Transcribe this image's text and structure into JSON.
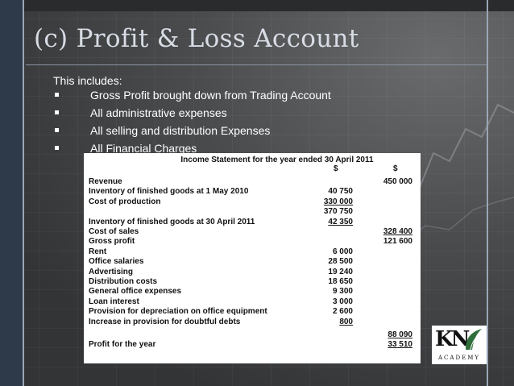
{
  "slide": {
    "title": "(c) Profit & Loss Account",
    "intro": "This includes:",
    "bullets": [
      "Gross Profit brought down from Trading Account",
      "All administrative expenses",
      "All selling and distribution Expenses",
      "All Financial Charges"
    ]
  },
  "statement": {
    "title": "Income Statement for the year ended 30 April 2011",
    "col1_header": "$",
    "col2_header": "$",
    "rows": [
      {
        "label": "Revenue",
        "c1": "",
        "c2": "450 000"
      },
      {
        "label": "Inventory of finished goods at 1 May 2010",
        "c1": "40 750",
        "c2": ""
      },
      {
        "label": "Cost of production",
        "c1": "330 000",
        "c2": ""
      },
      {
        "label": "",
        "c1": "370 750",
        "c2": ""
      },
      {
        "label": "Inventory of finished goods at 30 April 2011",
        "c1": "42 350",
        "c2": ""
      },
      {
        "label": "Cost of sales",
        "c1": "",
        "c2": "328 400"
      },
      {
        "label": "Gross profit",
        "c1": "",
        "c2": "121 600"
      },
      {
        "label": "Rent",
        "c1": "6 000",
        "c2": ""
      },
      {
        "label": "Office salaries",
        "c1": "28 500",
        "c2": ""
      },
      {
        "label": "Advertising",
        "c1": "19 240",
        "c2": ""
      },
      {
        "label": "Distribution costs",
        "c1": "18 650",
        "c2": ""
      },
      {
        "label": "General office expenses",
        "c1": "9 300",
        "c2": ""
      },
      {
        "label": "Loan interest",
        "c1": "3 000",
        "c2": ""
      },
      {
        "label": "Provision for depreciation on office equipment",
        "c1": "2 600",
        "c2": ""
      },
      {
        "label": "Increase in provision for doubtful debts",
        "c1": "800",
        "c2": ""
      },
      {
        "label": "",
        "c1": "",
        "c2": "88 090"
      },
      {
        "label": "Profit for the year",
        "c1": "",
        "c2": "33 510"
      }
    ]
  },
  "logo": {
    "letters": "KN",
    "subtitle": "ACADEMY"
  }
}
